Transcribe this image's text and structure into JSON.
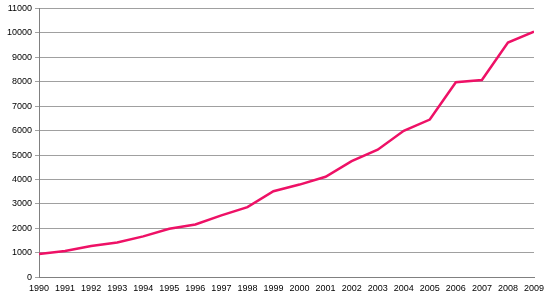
{
  "chart_data": {
    "type": "line",
    "categories": [
      "1990",
      "1991",
      "1992",
      "1993",
      "1994",
      "1995",
      "1996",
      "1997",
      "1998",
      "1999",
      "2000",
      "2001",
      "2002",
      "2003",
      "2004",
      "2005",
      "2006",
      "2007",
      "2008",
      "2009"
    ],
    "values": [
      950,
      1070,
      1280,
      1420,
      1670,
      1980,
      2160,
      2530,
      2870,
      3520,
      3790,
      4110,
      4750,
      5220,
      5990,
      6450,
      7980,
      8070,
      9600,
      10050
    ],
    "color": "#ee1166",
    "ylim": [
      0,
      11000
    ],
    "yticks": [
      0,
      1000,
      2000,
      3000,
      4000,
      5000,
      6000,
      7000,
      8000,
      9000,
      10000,
      11000
    ],
    "grid": true
  }
}
